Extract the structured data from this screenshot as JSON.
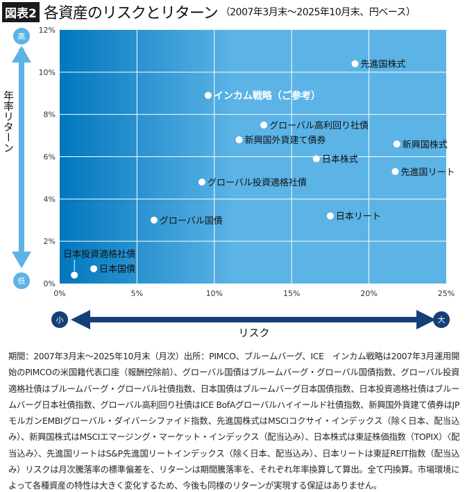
{
  "header": {
    "badge": "図表2",
    "title": "各資産のリスクとリターン",
    "subtitle": "（2007年3月末〜2025年10月末、円ベース）"
  },
  "colors": {
    "plot_dark": "#0277bd",
    "plot_light": "#5bb3e6",
    "point": "#ffffff",
    "y_arrow": "#5bb3e6",
    "x_arrow": "#163f7a"
  },
  "chart_data": {
    "type": "scatter",
    "xlabel": "リスク",
    "ylabel": "年率リターン",
    "xlim": [
      0,
      25
    ],
    "ylim": [
      0,
      12
    ],
    "x_ticks": [
      "0%",
      "5%",
      "10%",
      "15%",
      "20%",
      "25%"
    ],
    "y_ticks": [
      "0%",
      "2%",
      "4%",
      "6%",
      "8%",
      "10%",
      "12%"
    ],
    "grid": true,
    "y_arrow_labels": {
      "high": "高",
      "low": "低"
    },
    "x_arrow_labels": {
      "small": "小",
      "large": "大"
    },
    "points": [
      {
        "label": "先進国株式",
        "x": 19.1,
        "y": 10.4
      },
      {
        "label": "インカム戦略（ご参考）",
        "x": 9.6,
        "y": 8.9,
        "highlight": true
      },
      {
        "label": "グローバル高利回り社債",
        "x": 13.2,
        "y": 7.5
      },
      {
        "label": "新興国外貨建て債券",
        "x": 11.6,
        "y": 6.8
      },
      {
        "label": "新興国株式",
        "x": 21.8,
        "y": 6.6
      },
      {
        "label": "日本株式",
        "x": 16.6,
        "y": 5.9
      },
      {
        "label": "先進国リート",
        "x": 21.7,
        "y": 5.3
      },
      {
        "label": "グローバル投資適格社債",
        "x": 9.2,
        "y": 4.8
      },
      {
        "label": "グローバル国債",
        "x": 6.1,
        "y": 3.0
      },
      {
        "label": "日本リート",
        "x": 17.5,
        "y": 3.2
      },
      {
        "label": "日本国債",
        "x": 2.2,
        "y": 0.7
      },
      {
        "label": "日本投資適格社債",
        "x": 0.95,
        "y": 0.4,
        "callout": true
      }
    ]
  },
  "footnote": "期間：2007年3月末〜2025年10月末（月次）出所：PIMCO、ブルームバーグ、ICE　インカム戦略は2007年3月運用開始のPIMCOの米国籍代表口座（報酬控除前）、グローバル国債はブルームバーグ・グローバル国債指数、グローバル投資適格社債はブルームバーグ・グローバル社債指数、日本国債はブルームバーグ日本国債指数、日本投資適格社債はブルームバーグ日本社債指数、グローバル高利回り社債はICE BofAグローバルハイイールド社債指数、新興国外貨建て債券はJPモルガンEMBIグローバル・ダイバーシファイド指数、先進国株式はMSCIコクサイ・インデックス（除く日本、配当込み）、新興国株式はMSCIエマージング・マーケット・インデックス（配当込み）、日本株式は東証株価指数（TOPIX）〈配当込み〉、先進国リートはS&P先進国リートインデックス（除く日本、配当込み）、日本リートは東証REIT指数（配当込み）リスクは月次騰落率の標準偏差を、リターンは期間騰落率を、それぞれ年率換算して算出。全て円換算。市場環境によって各種資産の特性は大きく変化するため、今後も同様のリターンが実現する保証はありません。"
}
